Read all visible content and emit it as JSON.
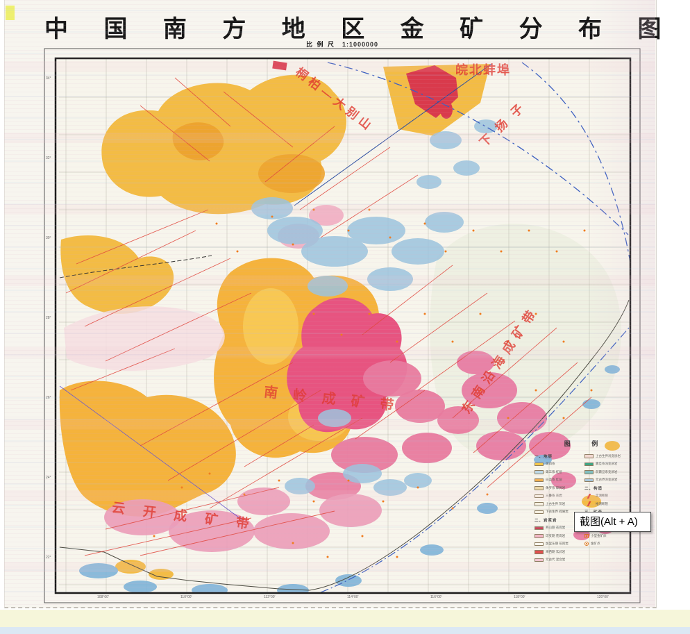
{
  "tooltip": {
    "text": "截图(Alt + A)"
  },
  "map": {
    "title": "中 国 南 方 地 区 金 矿 分 布 图",
    "scale_label": "比 例 尺",
    "scale_value": "1:1000000"
  },
  "annotations": {
    "wanbei": "皖北蚌埠",
    "tongbai": "桐柏—大别山",
    "xiayangzi": "下扬子",
    "nanling": "南岭成矿带",
    "dongnan": "东南沿海成矿带",
    "yunkai": "云开成矿带"
  },
  "graticule": {
    "lon": [
      "108°00′",
      "110°00′",
      "112°00′",
      "114°00′",
      "116°00′",
      "118°00′",
      "120°00′"
    ],
    "lat": [
      "34°",
      "32°",
      "30°",
      "28°",
      "26°",
      "24°",
      "22°"
    ]
  },
  "legend": {
    "title": "图  例",
    "left": [
      {
        "type": "header",
        "label": "一、地层"
      },
      {
        "type": "item",
        "label": "第四系",
        "color": "#f5c84a"
      },
      {
        "type": "item",
        "label": "第三系 红层",
        "color": "#bcd9e8"
      },
      {
        "type": "item",
        "label": "白垩系 红层",
        "color": "#f2b04e"
      },
      {
        "type": "item",
        "label": "侏罗系 碎屑岩",
        "color": "#ecd9a8"
      },
      {
        "type": "item",
        "label": "三叠系 灰岩",
        "color": "#f6f2e2"
      },
      {
        "type": "item",
        "label": "上古生界 灰岩",
        "color": "#f6f2e2"
      },
      {
        "type": "item",
        "label": "下古生界 碎屑岩",
        "color": "#f6f2e2"
      },
      {
        "type": "header",
        "label": "二、岩浆岩"
      },
      {
        "type": "item",
        "label": "燕山期 花岗岩",
        "color": "#c6485a"
      },
      {
        "type": "item",
        "label": "印支期 花岗岩",
        "color": "#f2b8c6"
      },
      {
        "type": "item",
        "label": "加里东期 花岗岩",
        "color": "#faf6ee"
      },
      {
        "type": "item",
        "label": "海西期 玄武岩",
        "color": "#e05050"
      },
      {
        "type": "item",
        "label": "元古代 混合岩",
        "color": "#f2c4d0"
      }
    ],
    "right": [
      {
        "type": "item",
        "label": "上古生界浅变质岩",
        "color": "#f3d9d2"
      },
      {
        "type": "item",
        "label": "震旦系浅变质岩",
        "color": "#3da583"
      },
      {
        "type": "item",
        "label": "前震旦系变质岩",
        "color": "#7fbfbf"
      },
      {
        "type": "item",
        "label": "元古界深变质岩",
        "color": "#a8c8dc"
      },
      {
        "type": "header",
        "label": "二、构造"
      },
      {
        "type": "fault",
        "label": "实测断裂"
      },
      {
        "type": "fault",
        "label": "推测断裂"
      },
      {
        "type": "header",
        "label": "三、矿产"
      },
      {
        "type": "ore",
        "label": "大型金矿床"
      },
      {
        "type": "ore",
        "label": "中型金矿床"
      },
      {
        "type": "ore2",
        "label": "小型金矿床"
      },
      {
        "type": "ore",
        "label": "金矿点"
      }
    ]
  },
  "palette": {
    "paper": "#f7f5ec",
    "yellow_strata": "#f3bc45",
    "orange_strata": "#f5b33c",
    "magenta_granite": "#e75480",
    "pink_granite": "#eb9cb8",
    "blue_strata": "#9cc4de",
    "fault_red": "#e0473d",
    "annotation_red": "#e0392f",
    "tectonic_blue": "#3b5fc0"
  }
}
